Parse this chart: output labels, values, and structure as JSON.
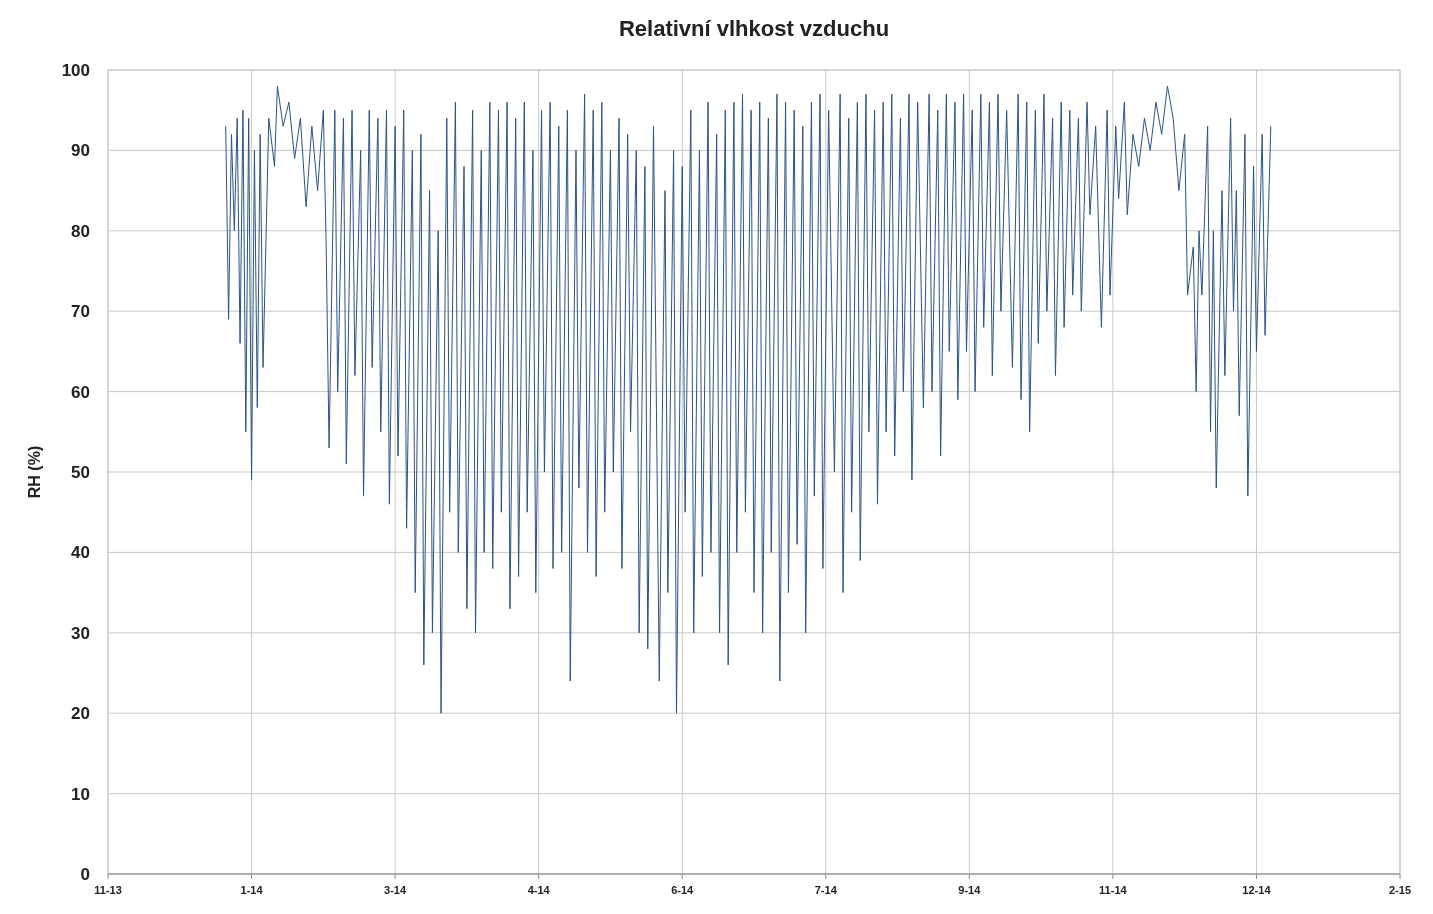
{
  "chart_data": {
    "type": "line",
    "title": "Relativní vlhkost vzduchu",
    "ylabel": "RH (%)",
    "grid": true,
    "marker": "none",
    "line_style": "solid",
    "color": "#2a5389",
    "ylim": [
      0,
      100
    ],
    "yticks": [
      0,
      10,
      20,
      30,
      40,
      50,
      60,
      70,
      80,
      90,
      100
    ],
    "xlim": [
      "2013-11-21",
      "2015-02-14"
    ],
    "xticks": [
      {
        "value": "2013-11-21",
        "label": "11-13"
      },
      {
        "value": "2014-01-10",
        "label": "1-14"
      },
      {
        "value": "2014-03-01",
        "label": "3-14"
      },
      {
        "value": "2014-04-20",
        "label": "4-14"
      },
      {
        "value": "2014-06-09",
        "label": "6-14"
      },
      {
        "value": "2014-07-29",
        "label": "7-14"
      },
      {
        "value": "2014-09-17",
        "label": "9-14"
      },
      {
        "value": "2014-11-06",
        "label": "11-14"
      },
      {
        "value": "2014-12-26",
        "label": "12-14"
      },
      {
        "value": "2015-02-14",
        "label": "2-15"
      }
    ],
    "x": [
      "2014-01-01",
      "2014-01-02",
      "2014-01-03",
      "2014-01-04",
      "2014-01-05",
      "2014-01-06",
      "2014-01-07",
      "2014-01-08",
      "2014-01-09",
      "2014-01-10",
      "2014-01-11",
      "2014-01-12",
      "2014-01-13",
      "2014-01-14",
      "2014-01-16",
      "2014-01-18",
      "2014-01-19",
      "2014-01-21",
      "2014-01-23",
      "2014-01-25",
      "2014-01-27",
      "2014-01-29",
      "2014-01-31",
      "2014-02-02",
      "2014-02-04",
      "2014-02-05",
      "2014-02-06",
      "2014-02-08",
      "2014-02-09",
      "2014-02-11",
      "2014-02-12",
      "2014-02-14",
      "2014-02-15",
      "2014-02-17",
      "2014-02-18",
      "2014-02-20",
      "2014-02-21",
      "2014-02-23",
      "2014-02-24",
      "2014-02-26",
      "2014-02-27",
      "2014-03-01",
      "2014-03-02",
      "2014-03-04",
      "2014-03-05",
      "2014-03-07",
      "2014-03-08",
      "2014-03-10",
      "2014-03-11",
      "2014-03-13",
      "2014-03-14",
      "2014-03-16",
      "2014-03-17",
      "2014-03-19",
      "2014-03-20",
      "2014-03-22",
      "2014-03-23",
      "2014-03-25",
      "2014-03-26",
      "2014-03-28",
      "2014-03-29",
      "2014-03-31",
      "2014-04-01",
      "2014-04-03",
      "2014-04-04",
      "2014-04-06",
      "2014-04-07",
      "2014-04-09",
      "2014-04-10",
      "2014-04-12",
      "2014-04-13",
      "2014-04-15",
      "2014-04-16",
      "2014-04-18",
      "2014-04-19",
      "2014-04-21",
      "2014-04-22",
      "2014-04-24",
      "2014-04-25",
      "2014-04-27",
      "2014-04-28",
      "2014-04-30",
      "2014-05-01",
      "2014-05-03",
      "2014-05-04",
      "2014-05-06",
      "2014-05-07",
      "2014-05-09",
      "2014-05-10",
      "2014-05-12",
      "2014-05-13",
      "2014-05-15",
      "2014-05-16",
      "2014-05-18",
      "2014-05-19",
      "2014-05-21",
      "2014-05-22",
      "2014-05-24",
      "2014-05-25",
      "2014-05-27",
      "2014-05-28",
      "2014-05-30",
      "2014-06-01",
      "2014-06-03",
      "2014-06-04",
      "2014-06-06",
      "2014-06-07",
      "2014-06-09",
      "2014-06-10",
      "2014-06-12",
      "2014-06-13",
      "2014-06-15",
      "2014-06-16",
      "2014-06-18",
      "2014-06-19",
      "2014-06-21",
      "2014-06-22",
      "2014-06-24",
      "2014-06-25",
      "2014-06-27",
      "2014-06-28",
      "2014-06-30",
      "2014-07-01",
      "2014-07-03",
      "2014-07-04",
      "2014-07-06",
      "2014-07-07",
      "2014-07-09",
      "2014-07-10",
      "2014-07-12",
      "2014-07-13",
      "2014-07-15",
      "2014-07-16",
      "2014-07-18",
      "2014-07-19",
      "2014-07-21",
      "2014-07-22",
      "2014-07-24",
      "2014-07-25",
      "2014-07-27",
      "2014-07-28",
      "2014-07-30",
      "2014-08-01",
      "2014-08-03",
      "2014-08-04",
      "2014-08-06",
      "2014-08-07",
      "2014-08-09",
      "2014-08-10",
      "2014-08-12",
      "2014-08-13",
      "2014-08-15",
      "2014-08-16",
      "2014-08-18",
      "2014-08-19",
      "2014-08-21",
      "2014-08-22",
      "2014-08-24",
      "2014-08-25",
      "2014-08-27",
      "2014-08-28",
      "2014-08-30",
      "2014-09-01",
      "2014-09-03",
      "2014-09-04",
      "2014-09-06",
      "2014-09-07",
      "2014-09-09",
      "2014-09-10",
      "2014-09-12",
      "2014-09-13",
      "2014-09-15",
      "2014-09-16",
      "2014-09-18",
      "2014-09-19",
      "2014-09-21",
      "2014-09-22",
      "2014-09-24",
      "2014-09-25",
      "2014-09-27",
      "2014-09-28",
      "2014-09-30",
      "2014-10-02",
      "2014-10-04",
      "2014-10-05",
      "2014-10-07",
      "2014-10-08",
      "2014-10-10",
      "2014-10-11",
      "2014-10-13",
      "2014-10-14",
      "2014-10-16",
      "2014-10-17",
      "2014-10-19",
      "2014-10-20",
      "2014-10-22",
      "2014-10-23",
      "2014-10-25",
      "2014-10-26",
      "2014-10-28",
      "2014-10-29",
      "2014-10-31",
      "2014-11-02",
      "2014-11-04",
      "2014-11-05",
      "2014-11-07",
      "2014-11-08",
      "2014-11-10",
      "2014-11-11",
      "2014-11-13",
      "2014-11-15",
      "2014-11-17",
      "2014-11-19",
      "2014-11-21",
      "2014-11-23",
      "2014-11-25",
      "2014-11-27",
      "2014-11-29",
      "2014-12-01",
      "2014-12-02",
      "2014-12-04",
      "2014-12-05",
      "2014-12-06",
      "2014-12-07",
      "2014-12-09",
      "2014-12-10",
      "2014-12-11",
      "2014-12-12",
      "2014-12-14",
      "2014-12-15",
      "2014-12-17",
      "2014-12-18",
      "2014-12-19",
      "2014-12-20",
      "2014-12-22",
      "2014-12-23",
      "2014-12-25",
      "2014-12-26",
      "2014-12-28",
      "2014-12-29",
      "2014-12-31"
    ],
    "values": [
      93,
      69,
      92,
      80,
      94,
      66,
      95,
      55,
      94,
      49,
      90,
      58,
      92,
      63,
      94,
      88,
      98,
      93,
      96,
      89,
      94,
      83,
      93,
      85,
      95,
      78,
      53,
      95,
      60,
      94,
      51,
      95,
      62,
      90,
      47,
      95,
      63,
      94,
      55,
      95,
      46,
      93,
      52,
      95,
      43,
      90,
      35,
      92,
      26,
      85,
      30,
      80,
      20,
      94,
      45,
      96,
      40,
      88,
      33,
      95,
      30,
      90,
      40,
      96,
      38,
      95,
      45,
      96,
      33,
      94,
      37,
      96,
      45,
      90,
      35,
      95,
      50,
      96,
      38,
      93,
      40,
      95,
      24,
      90,
      48,
      97,
      40,
      95,
      37,
      96,
      45,
      90,
      50,
      94,
      38,
      92,
      55,
      90,
      30,
      88,
      28,
      93,
      24,
      85,
      35,
      90,
      20,
      88,
      45,
      95,
      30,
      90,
      37,
      96,
      40,
      92,
      30,
      95,
      26,
      96,
      40,
      97,
      45,
      95,
      35,
      96,
      30,
      94,
      40,
      97,
      24,
      96,
      35,
      95,
      41,
      93,
      30,
      96,
      47,
      97,
      38,
      95,
      50,
      97,
      35,
      94,
      45,
      96,
      39,
      97,
      55,
      95,
      46,
      96,
      55,
      97,
      52,
      94,
      60,
      97,
      49,
      96,
      58,
      97,
      60,
      95,
      52,
      97,
      65,
      96,
      59,
      97,
      65,
      95,
      60,
      97,
      68,
      96,
      62,
      97,
      70,
      95,
      63,
      97,
      59,
      96,
      55,
      95,
      66,
      97,
      70,
      94,
      62,
      96,
      68,
      95,
      72,
      94,
      70,
      96,
      82,
      93,
      68,
      95,
      72,
      93,
      84,
      96,
      82,
      92,
      88,
      94,
      90,
      96,
      92,
      98,
      94,
      85,
      92,
      72,
      78,
      60,
      80,
      72,
      93,
      55,
      80,
      48,
      85,
      62,
      94,
      70,
      85,
      57,
      92,
      47,
      88,
      65,
      92,
      67,
      93
    ]
  }
}
